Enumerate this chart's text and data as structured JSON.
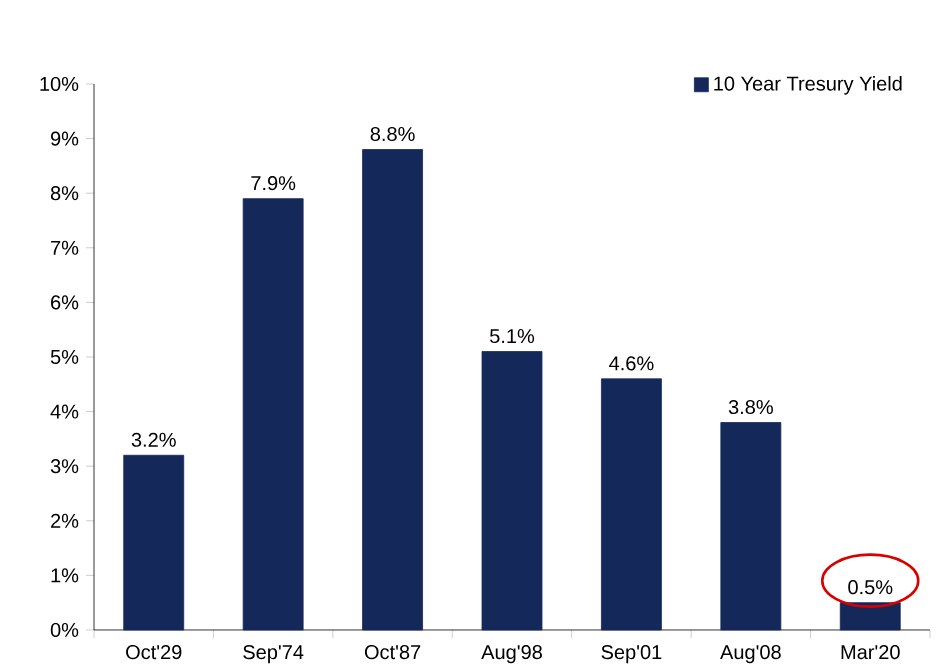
{
  "chart_data": {
    "type": "bar",
    "categories": [
      "Oct'29",
      "Sep'74",
      "Oct'87",
      "Aug'98",
      "Sep'01",
      "Aug'08",
      "Mar'20"
    ],
    "series": [
      {
        "name": "10 Year Tresury Yield",
        "color": "#14295a",
        "values": [
          3.2,
          7.9,
          8.8,
          5.1,
          4.6,
          3.8,
          0.5
        ],
        "value_labels": [
          "3.2%",
          "7.9%",
          "8.8%",
          "5.1%",
          "4.6%",
          "3.8%",
          "0.5%"
        ]
      }
    ],
    "ylim": [
      0,
      10
    ],
    "yticks": [
      {
        "value": 0,
        "label": "0%"
      },
      {
        "value": 1,
        "label": "1%"
      },
      {
        "value": 2,
        "label": "2%"
      },
      {
        "value": 3,
        "label": "3%"
      },
      {
        "value": 4,
        "label": "4%"
      },
      {
        "value": 5,
        "label": "5%"
      },
      {
        "value": 6,
        "label": "6%"
      },
      {
        "value": 7,
        "label": "7%"
      },
      {
        "value": 8,
        "label": "8%"
      },
      {
        "value": 9,
        "label": "9%"
      },
      {
        "value": 10,
        "label": "10%"
      }
    ],
    "legend": "top right",
    "grid": false
  }
}
